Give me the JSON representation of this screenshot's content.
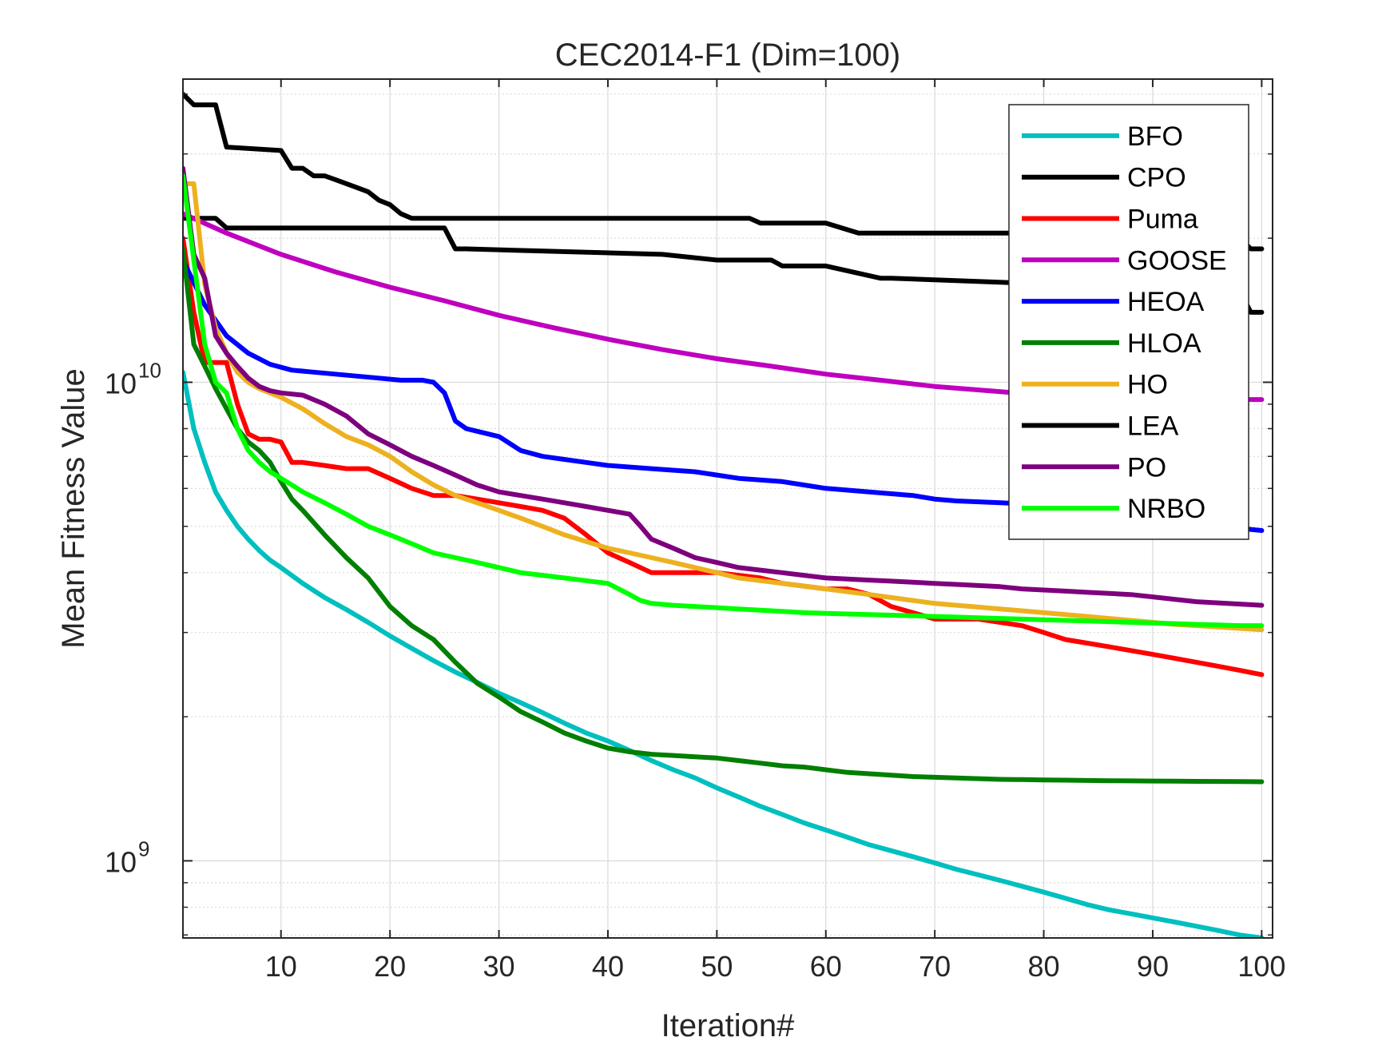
{
  "chart_data": {
    "type": "line",
    "title": "CEC2014-F1 (Dim=100)",
    "xlabel": "Iteration#",
    "ylabel": "Mean Fitness Value",
    "yscale": "log",
    "xlim": [
      1,
      101
    ],
    "ylim": [
      690000000,
      43000000000
    ],
    "xticks": [
      10,
      20,
      30,
      40,
      50,
      60,
      70,
      80,
      90,
      100
    ],
    "xtick_labels": [
      "10",
      "20",
      "30",
      "40",
      "50",
      "60",
      "70",
      "80",
      "90",
      "100"
    ],
    "yticks": [
      1000000000,
      10000000000
    ],
    "ytick_labels": [
      {
        "base": "10",
        "exp": "9"
      },
      {
        "base": "10",
        "exp": "10"
      }
    ],
    "grid": true,
    "legend_position": "top-right",
    "series": [
      {
        "name": "BFO",
        "color": "#00BFBF",
        "x": [
          1,
          2,
          3,
          4,
          5,
          6,
          7,
          8,
          9,
          10,
          12,
          14,
          16,
          18,
          20,
          22,
          24,
          26,
          28,
          30,
          32,
          34,
          36,
          38,
          40,
          42,
          44,
          46,
          48,
          50,
          52,
          54,
          56,
          58,
          60,
          62,
          64,
          66,
          68,
          70,
          72,
          74,
          76,
          78,
          80,
          82,
          84,
          86,
          88,
          90,
          92,
          94,
          96,
          98,
          100
        ],
        "y": [
          10500000000,
          8000000000,
          6800000000,
          5900000000,
          5400000000,
          5000000000,
          4700000000,
          4450000000,
          4250000000,
          4100000000,
          3800000000,
          3550000000,
          3350000000,
          3150000000,
          2950000000,
          2780000000,
          2620000000,
          2480000000,
          2360000000,
          2240000000,
          2140000000,
          2040000000,
          1940000000,
          1850000000,
          1780000000,
          1700000000,
          1620000000,
          1550000000,
          1490000000,
          1420000000,
          1360000000,
          1300000000,
          1250000000,
          1200000000,
          1160000000,
          1120000000,
          1080000000,
          1050000000,
          1020000000,
          990000000,
          960000000,
          935000000,
          910000000,
          885000000,
          860000000,
          835000000,
          810000000,
          790000000,
          775000000,
          760000000,
          745000000,
          730000000,
          715000000,
          700000000,
          690000000
        ]
      },
      {
        "name": "CPO",
        "color": "#000000",
        "x": [
          1,
          4,
          5,
          12,
          18,
          19,
          25,
          26,
          27,
          45,
          50,
          55,
          56,
          60,
          65,
          66,
          98,
          99,
          100
        ],
        "y": [
          22000000000,
          22000000000,
          21000000000,
          21000000000,
          21000000000,
          21000000000,
          21000000000,
          19000000000,
          19000000000,
          18500000000,
          18000000000,
          18000000000,
          17500000000,
          17500000000,
          16500000000,
          16500000000,
          15500000000,
          14000000000,
          14000000000
        ]
      },
      {
        "name": "Puma",
        "color": "#FF0000",
        "x": [
          1,
          2,
          3,
          4,
          5,
          6,
          7,
          8,
          9,
          10,
          11,
          12,
          14,
          16,
          18,
          20,
          22,
          24,
          26,
          28,
          30,
          32,
          34,
          36,
          38,
          40,
          42,
          44,
          46,
          48,
          50,
          52,
          54,
          56,
          58,
          60,
          62,
          64,
          66,
          68,
          70,
          72,
          74,
          76,
          78,
          80,
          82,
          84,
          86,
          88,
          90,
          92,
          94,
          96,
          98,
          100
        ],
        "y": [
          20000000000,
          14000000000,
          11000000000,
          11000000000,
          11000000000,
          9000000000,
          7800000000,
          7600000000,
          7600000000,
          7500000000,
          6800000000,
          6800000000,
          6700000000,
          6600000000,
          6600000000,
          6300000000,
          6000000000,
          5800000000,
          5800000000,
          5700000000,
          5600000000,
          5500000000,
          5400000000,
          5200000000,
          4800000000,
          4400000000,
          4200000000,
          4000000000,
          4000000000,
          4000000000,
          4000000000,
          3950000000,
          3900000000,
          3800000000,
          3750000000,
          3700000000,
          3700000000,
          3600000000,
          3400000000,
          3300000000,
          3200000000,
          3200000000,
          3200000000,
          3150000000,
          3100000000,
          3000000000,
          2900000000,
          2850000000,
          2800000000,
          2750000000,
          2700000000,
          2650000000,
          2600000000,
          2550000000,
          2500000000,
          2450000000
        ]
      },
      {
        "name": "GOOSE",
        "color": "#BF00BF",
        "x": [
          1,
          5,
          10,
          15,
          20,
          25,
          30,
          35,
          40,
          45,
          50,
          55,
          60,
          65,
          70,
          75,
          80,
          85,
          90,
          95,
          100
        ],
        "y": [
          22500000000,
          20500000000,
          18500000000,
          17000000000,
          15800000000,
          14800000000,
          13800000000,
          13000000000,
          12300000000,
          11700000000,
          11200000000,
          10800000000,
          10400000000,
          10100000000,
          9800000000,
          9600000000,
          9400000000,
          9300000000,
          9200000000,
          9200000000,
          9200000000
        ]
      },
      {
        "name": "HEOA",
        "color": "#0000FF",
        "x": [
          1,
          3,
          5,
          7,
          9,
          11,
          13,
          15,
          17,
          19,
          21,
          23,
          24,
          25,
          26,
          27,
          28,
          30,
          32,
          34,
          36,
          38,
          40,
          44,
          48,
          50,
          52,
          56,
          60,
          64,
          68,
          70,
          72,
          76,
          80,
          84,
          88,
          90,
          92,
          94,
          96,
          98,
          100
        ],
        "y": [
          18000000000,
          14500000000,
          12500000000,
          11500000000,
          10900000000,
          10600000000,
          10500000000,
          10400000000,
          10300000000,
          10200000000,
          10100000000,
          10100000000,
          10000000000,
          9500000000,
          8300000000,
          8000000000,
          7900000000,
          7700000000,
          7200000000,
          7000000000,
          6900000000,
          6800000000,
          6700000000,
          6600000000,
          6500000000,
          6400000000,
          6300000000,
          6200000000,
          6000000000,
          5900000000,
          5800000000,
          5700000000,
          5650000000,
          5600000000,
          5550000000,
          5500000000,
          5400000000,
          5300000000,
          5200000000,
          5100000000,
          5000000000,
          4950000000,
          4900000000
        ]
      },
      {
        "name": "HLOA",
        "color": "#007F00",
        "x": [
          1,
          2,
          3,
          4,
          5,
          6,
          7,
          8,
          9,
          10,
          11,
          12,
          14,
          16,
          18,
          20,
          22,
          24,
          26,
          28,
          30,
          32,
          34,
          36,
          38,
          40,
          42,
          44,
          46,
          48,
          50,
          52,
          54,
          56,
          58,
          60,
          62,
          64,
          66,
          68,
          70,
          72,
          74,
          76,
          78,
          80,
          82,
          84,
          86,
          88,
          90,
          92,
          94,
          96,
          98,
          100
        ],
        "y": [
          19000000000,
          12000000000,
          10800000000,
          9700000000,
          8800000000,
          8000000000,
          7500000000,
          7200000000,
          6800000000,
          6200000000,
          5700000000,
          5400000000,
          4800000000,
          4300000000,
          3900000000,
          3400000000,
          3100000000,
          2900000000,
          2600000000,
          2350000000,
          2200000000,
          2050000000,
          1950000000,
          1850000000,
          1780000000,
          1720000000,
          1690000000,
          1670000000,
          1660000000,
          1650000000,
          1640000000,
          1620000000,
          1600000000,
          1580000000,
          1570000000,
          1550000000,
          1530000000,
          1520000000,
          1510000000,
          1500000000,
          1495000000,
          1490000000,
          1485000000,
          1480000000,
          1478000000,
          1476000000,
          1474000000,
          1472000000,
          1470000000,
          1469000000,
          1468000000,
          1467000000,
          1466000000,
          1465000000,
          1464000000,
          1463000000
        ]
      },
      {
        "name": "HO",
        "color": "#EDB120",
        "x": [
          1,
          2,
          3,
          4,
          5,
          6,
          7,
          8,
          9,
          10,
          12,
          14,
          16,
          18,
          20,
          22,
          24,
          26,
          28,
          30,
          32,
          34,
          36,
          38,
          40,
          42,
          44,
          46,
          48,
          50,
          52,
          54,
          56,
          58,
          60,
          62,
          64,
          66,
          68,
          70,
          72,
          74,
          76,
          78,
          80,
          82,
          84,
          86,
          88,
          90,
          92,
          94,
          96,
          98,
          100
        ],
        "y": [
          26000000000,
          26000000000,
          16000000000,
          13000000000,
          11500000000,
          10500000000,
          10000000000,
          9700000000,
          9500000000,
          9300000000,
          8800000000,
          8200000000,
          7700000000,
          7400000000,
          7000000000,
          6500000000,
          6100000000,
          5800000000,
          5600000000,
          5400000000,
          5200000000,
          5000000000,
          4800000000,
          4650000000,
          4500000000,
          4400000000,
          4300000000,
          4200000000,
          4100000000,
          4000000000,
          3900000000,
          3850000000,
          3800000000,
          3750000000,
          3700000000,
          3650000000,
          3600000000,
          3550000000,
          3500000000,
          3450000000,
          3420000000,
          3390000000,
          3360000000,
          3330000000,
          3300000000,
          3270000000,
          3240000000,
          3210000000,
          3180000000,
          3150000000,
          3120000000,
          3100000000,
          3080000000,
          3060000000,
          3040000000
        ]
      },
      {
        "name": "LEA",
        "color": "#000000",
        "x": [
          1,
          2,
          3,
          4,
          5,
          10,
          11,
          12,
          13,
          14,
          15,
          16,
          17,
          18,
          19,
          20,
          21,
          22,
          23,
          25,
          30,
          35,
          40,
          45,
          50,
          53,
          54,
          60,
          63,
          64,
          68,
          70,
          75,
          80,
          85,
          90,
          95,
          98,
          99,
          100
        ],
        "y": [
          40000000000,
          38000000000,
          38000000000,
          38000000000,
          31000000000,
          30500000000,
          28000000000,
          28000000000,
          27000000000,
          27000000000,
          26500000000,
          26000000000,
          25500000000,
          25000000000,
          24000000000,
          23500000000,
          22500000000,
          22000000000,
          22000000000,
          22000000000,
          22000000000,
          22000000000,
          22000000000,
          22000000000,
          22000000000,
          22000000000,
          21500000000,
          21500000000,
          20500000000,
          20500000000,
          20500000000,
          20500000000,
          20500000000,
          20500000000,
          20500000000,
          20500000000,
          20500000000,
          20000000000,
          19000000000,
          19000000000
        ]
      },
      {
        "name": "PO",
        "color": "#7E007E",
        "x": [
          1,
          2,
          3,
          4,
          5,
          6,
          7,
          8,
          9,
          10,
          12,
          14,
          16,
          18,
          20,
          22,
          24,
          26,
          28,
          30,
          32,
          34,
          36,
          38,
          40,
          42,
          43,
          44,
          46,
          48,
          50,
          52,
          54,
          56,
          58,
          60,
          62,
          64,
          66,
          68,
          70,
          72,
          74,
          76,
          78,
          80,
          82,
          84,
          86,
          88,
          90,
          92,
          94,
          96,
          98,
          100
        ],
        "y": [
          28000000000,
          18500000000,
          16500000000,
          12500000000,
          11500000000,
          10800000000,
          10200000000,
          9800000000,
          9600000000,
          9500000000,
          9400000000,
          9000000000,
          8500000000,
          7800000000,
          7400000000,
          7000000000,
          6700000000,
          6400000000,
          6100000000,
          5900000000,
          5800000000,
          5700000000,
          5600000000,
          5500000000,
          5400000000,
          5300000000,
          5000000000,
          4700000000,
          4500000000,
          4300000000,
          4200000000,
          4100000000,
          4050000000,
          4000000000,
          3950000000,
          3900000000,
          3880000000,
          3860000000,
          3840000000,
          3820000000,
          3800000000,
          3780000000,
          3760000000,
          3740000000,
          3700000000,
          3680000000,
          3660000000,
          3640000000,
          3620000000,
          3600000000,
          3560000000,
          3520000000,
          3480000000,
          3460000000,
          3440000000,
          3420000000
        ]
      },
      {
        "name": "NRBO",
        "color": "#00FF00",
        "x": [
          1,
          2,
          3,
          4,
          5,
          6,
          7,
          8,
          9,
          10,
          11,
          12,
          14,
          16,
          18,
          20,
          22,
          24,
          26,
          28,
          30,
          32,
          34,
          36,
          38,
          40,
          42,
          43,
          44,
          46,
          48,
          50,
          52,
          54,
          56,
          58,
          60,
          62,
          64,
          66,
          68,
          70,
          72,
          74,
          76,
          78,
          80,
          82,
          84,
          86,
          88,
          90,
          92,
          94,
          96,
          98,
          100
        ],
        "y": [
          27000000000,
          18000000000,
          12000000000,
          10000000000,
          9500000000,
          8000000000,
          7200000000,
          6800000000,
          6500000000,
          6300000000,
          6100000000,
          5900000000,
          5600000000,
          5300000000,
          5000000000,
          4800000000,
          4600000000,
          4400000000,
          4300000000,
          4200000000,
          4100000000,
          4000000000,
          3950000000,
          3900000000,
          3850000000,
          3800000000,
          3600000000,
          3500000000,
          3450000000,
          3420000000,
          3400000000,
          3380000000,
          3360000000,
          3340000000,
          3320000000,
          3300000000,
          3290000000,
          3280000000,
          3270000000,
          3260000000,
          3250000000,
          3240000000,
          3230000000,
          3220000000,
          3210000000,
          3200000000,
          3190000000,
          3180000000,
          3170000000,
          3160000000,
          3150000000,
          3140000000,
          3130000000,
          3120000000,
          3110000000,
          3100000000,
          3100000000
        ]
      }
    ]
  }
}
